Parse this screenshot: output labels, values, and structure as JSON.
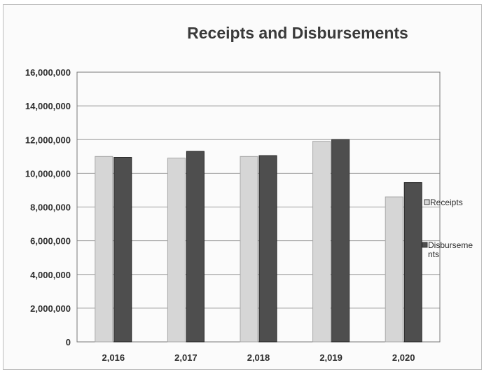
{
  "chart_data": {
    "type": "bar",
    "title": "Receipts and Disbursements",
    "xlabel": "",
    "ylabel": "",
    "categories": [
      "2,016",
      "2,017",
      "2,018",
      "2,019",
      "2,020"
    ],
    "series": [
      {
        "name": "Receipts",
        "values": [
          11000000,
          10900000,
          11000000,
          11900000,
          8600000
        ],
        "color": "#d6d6d6"
      },
      {
        "name": "Disbursements",
        "values": [
          10950000,
          11300000,
          11050000,
          12000000,
          9450000
        ],
        "color": "#4e4e4e"
      }
    ],
    "ylim": [
      0,
      16000000
    ],
    "yticks": [
      "0",
      "2,000,000",
      "4,000,000",
      "6,000,000",
      "8,000,000",
      "10,000,000",
      "12,000,000",
      "14,000,000",
      "16,000,000"
    ],
    "grid": true,
    "legend": "right",
    "legend_lines": [
      [
        "Receipts"
      ],
      [
        "Disburseme",
        "nts"
      ]
    ]
  }
}
